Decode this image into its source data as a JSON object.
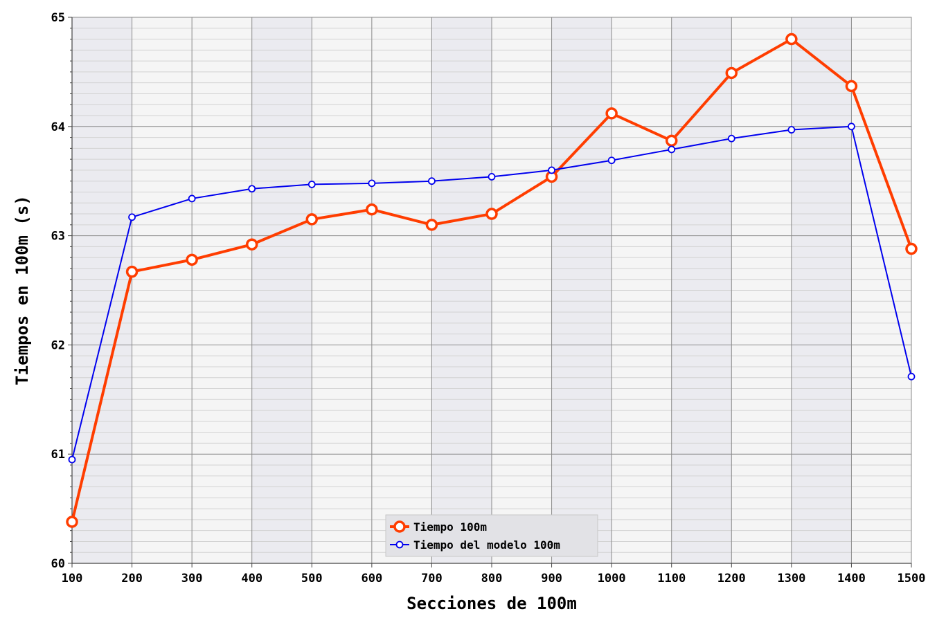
{
  "chart_data": {
    "type": "line",
    "title": "",
    "xlabel": "Secciones de 100m",
    "ylabel": "Tiempos en 100m (s)",
    "x": [
      100,
      200,
      300,
      400,
      500,
      600,
      700,
      800,
      900,
      1000,
      1100,
      1200,
      1300,
      1400,
      1500
    ],
    "x_ticks": [
      "100",
      "200",
      "300",
      "400",
      "500",
      "600",
      "700",
      "800",
      "900",
      "1000",
      "1100",
      "1200",
      "1300",
      "1400",
      "1500"
    ],
    "y_ticks": [
      "60",
      "61",
      "62",
      "63",
      "64",
      "65"
    ],
    "xlim": [
      100,
      1500
    ],
    "ylim": [
      60,
      65
    ],
    "grid": true,
    "legend_position": "bottom-center",
    "series": [
      {
        "name": "Tiempo 100m",
        "color": "#ff3d00",
        "values": [
          60.38,
          62.67,
          62.78,
          62.92,
          63.15,
          63.24,
          63.1,
          63.2,
          63.54,
          64.12,
          63.87,
          64.49,
          64.8,
          64.37,
          62.88
        ]
      },
      {
        "name": "Tiempo del modelo 100m",
        "color": "#0000ee",
        "values": [
          60.95,
          63.17,
          63.34,
          63.43,
          63.47,
          63.48,
          63.5,
          63.54,
          63.6,
          63.69,
          63.79,
          63.89,
          63.97,
          64.0,
          61.71
        ]
      }
    ]
  }
}
